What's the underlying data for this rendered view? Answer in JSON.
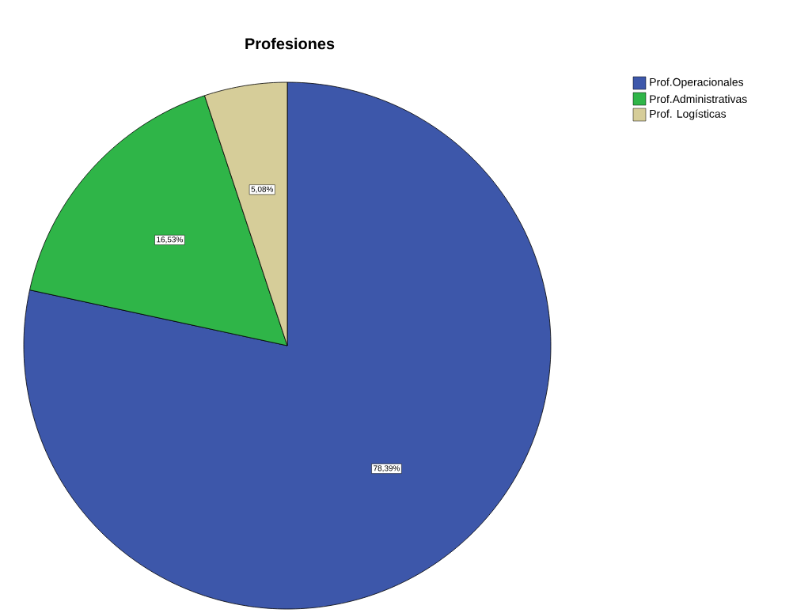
{
  "chart_data": {
    "type": "pie",
    "title": "Profesiones",
    "categories": [
      "Prof.Operacionales",
      "Prof.Administrativas",
      "Prof. Logísticas"
    ],
    "values": [
      78.39,
      16.53,
      5.08
    ],
    "colors": [
      "#3d57aa",
      "#2fb548",
      "#d6cd99"
    ],
    "value_labels": [
      "78,39%",
      "16,53%",
      "5,08%"
    ],
    "legend": "top right"
  }
}
